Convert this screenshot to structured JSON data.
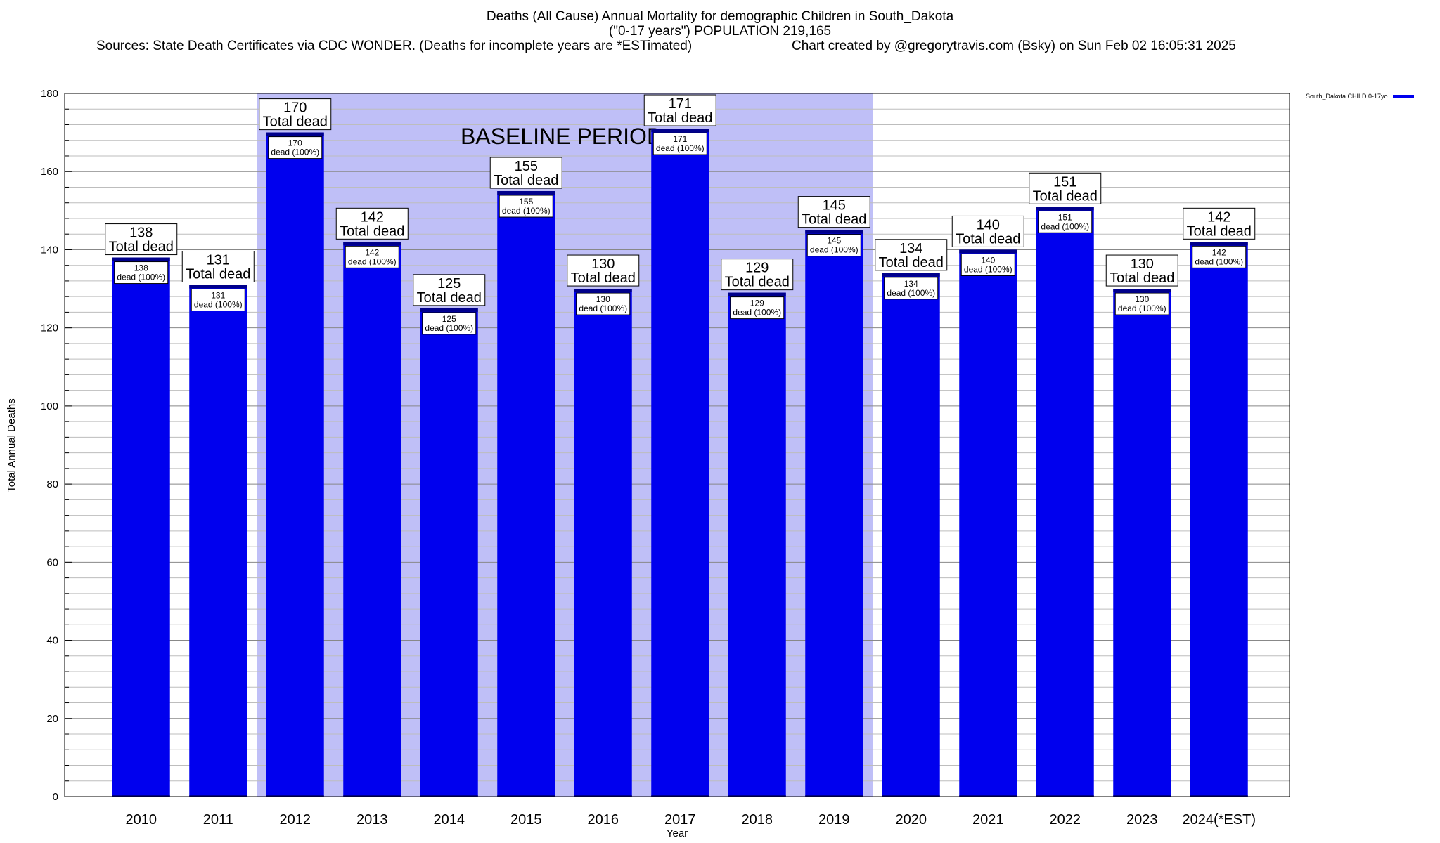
{
  "title": {
    "line1": "Deaths (All Cause) Annual Mortality for demographic Children in South_Dakota",
    "line2": "(\"0-17 years\") POPULATION 219,165",
    "line3_left": "Sources: State Death Certificates via CDC WONDER. (Deaths for incomplete years are *ESTimated)",
    "line3_right": "Chart created by @gregorytravis.com (Bsky) on Sun Feb 02 16:05:31 2025"
  },
  "legend": {
    "series_label": "South_Dakota CHILD 0-17yo",
    "color": "#0000ee"
  },
  "chart_data": {
    "type": "bar",
    "title": "Deaths (All Cause) Annual Mortality for demographic Children in South_Dakota",
    "xlabel": "Year",
    "ylabel": "Total Annual Deaths",
    "ylim": [
      0,
      180
    ],
    "yticks": [
      0,
      20,
      40,
      60,
      80,
      100,
      120,
      140,
      160,
      180
    ],
    "grid": true,
    "legend_position": "top-right",
    "categories": [
      "2010",
      "2011",
      "2012",
      "2013",
      "2014",
      "2015",
      "2016",
      "2017",
      "2018",
      "2019",
      "2020",
      "2021",
      "2022",
      "2023",
      "2024(*EST)"
    ],
    "series": [
      {
        "name": "South_Dakota CHILD 0-17yo",
        "color": "#0000ee",
        "values": [
          138,
          131,
          170,
          142,
          125,
          155,
          130,
          171,
          129,
          145,
          134,
          140,
          151,
          130,
          142
        ]
      }
    ],
    "baseline_period": {
      "label": "BASELINE PERIOD",
      "from": "2012",
      "to": "2019",
      "color": "#bfbff7"
    },
    "label_total_suffix": "Total dead",
    "label_pct_suffix": "dead (100%)"
  }
}
